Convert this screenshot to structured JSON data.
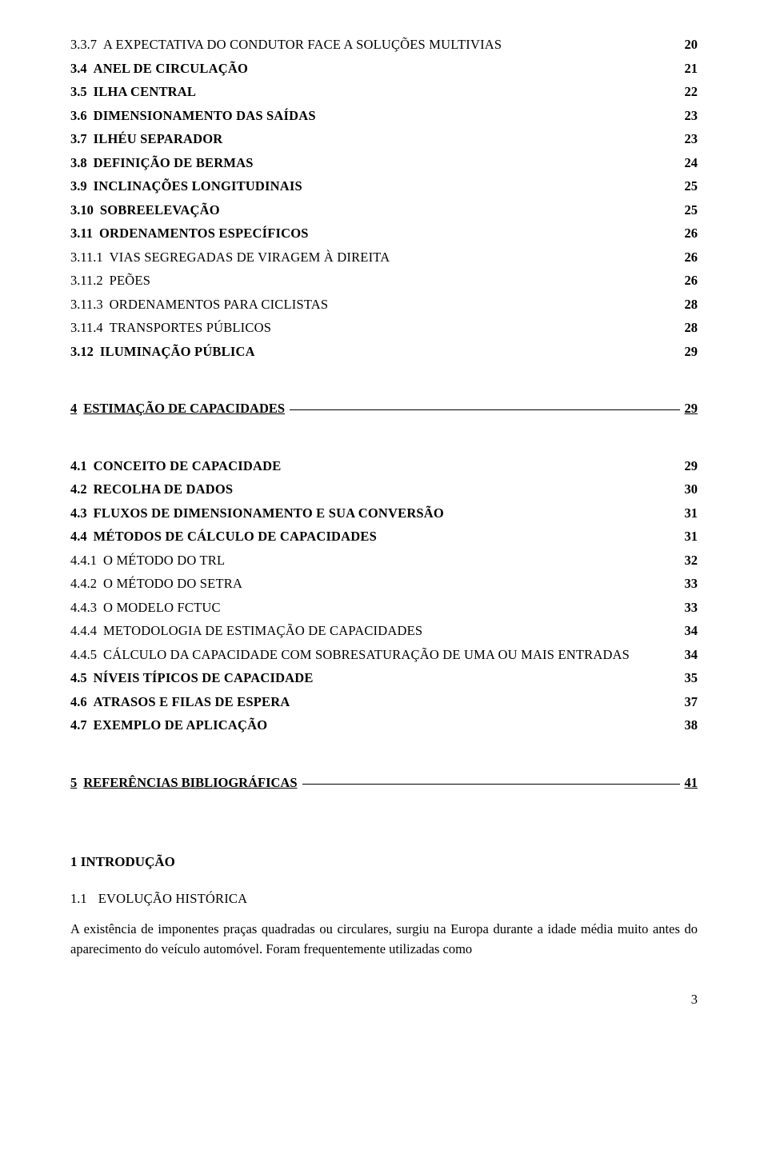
{
  "toc": {
    "block1": [
      {
        "num": "3.3.7",
        "title": "A EXPECTATIVA DO CONDUTOR FACE A SOLUÇÕES MULTIVIAS",
        "page": "20",
        "smallcaps": true
      },
      {
        "num": "3.4",
        "title": "ANEL DE CIRCULAÇÃO",
        "page": "21",
        "smallcaps": true,
        "bold": true
      },
      {
        "num": "3.5",
        "title": "ILHA CENTRAL",
        "page": "22",
        "smallcaps": true,
        "bold": true
      },
      {
        "num": "3.6",
        "title": "DIMENSIONAMENTO DAS SAÍDAS",
        "page": "23",
        "smallcaps": true,
        "bold": true
      },
      {
        "num": "3.7",
        "title": "ILHÉU SEPARADOR",
        "page": "23",
        "smallcaps": true,
        "bold": true
      },
      {
        "num": "3.8",
        "title": "DEFINIÇÃO DE BERMAS",
        "page": "24",
        "smallcaps": true,
        "bold": true
      },
      {
        "num": "3.9",
        "title": "INCLINAÇÕES LONGITUDINAIS",
        "page": "25",
        "smallcaps": true,
        "bold": true
      },
      {
        "num": "3.10",
        "title": "SOBREELEVAÇÃO",
        "page": "25",
        "smallcaps": true,
        "bold": true
      },
      {
        "num": "3.11",
        "title": "ORDENAMENTOS ESPECÍFICOS",
        "page": "26",
        "smallcaps": true,
        "bold": true
      },
      {
        "num": "3.11.1",
        "title": "VIAS SEGREGADAS DE VIRAGEM À DIREITA",
        "page": "26",
        "smallcaps": true
      },
      {
        "num": "3.11.2",
        "title": "PEÕES",
        "page": "26",
        "smallcaps": true
      },
      {
        "num": "3.11.3",
        "title": "ORDENAMENTOS PARA CICLISTAS",
        "page": "28",
        "smallcaps": true
      },
      {
        "num": "3.11.4",
        "title": "TRANSPORTES PÚBLICOS",
        "page": "28",
        "smallcaps": true
      },
      {
        "num": "3.12",
        "title": "ILUMINAÇÃO PÚBLICA",
        "page": "29",
        "smallcaps": true,
        "bold": true
      }
    ],
    "section4": {
      "num": "4",
      "title": "ESTIMAÇÃO DE CAPACIDADES",
      "page": "29"
    },
    "block2": [
      {
        "num": "4.1",
        "title": "CONCEITO DE CAPACIDADE",
        "page": "29",
        "smallcaps": true,
        "bold": true
      },
      {
        "num": "4.2",
        "title": "RECOLHA DE DADOS",
        "page": "30",
        "smallcaps": true,
        "bold": true
      },
      {
        "num": "4.3",
        "title": "FLUXOS DE DIMENSIONAMENTO E SUA CONVERSÃO",
        "page": "31",
        "smallcaps": true,
        "bold": true
      },
      {
        "num": "4.4",
        "title": "MÉTODOS DE CÁLCULO DE CAPACIDADES",
        "page": "31",
        "smallcaps": true,
        "bold": true
      },
      {
        "num": "4.4.1",
        "title": "O MÉTODO DO TRL",
        "page": "32",
        "smallcaps": true
      },
      {
        "num": "4.4.2",
        "title": "O MÉTODO DO SETRA",
        "page": "33",
        "smallcaps": true
      },
      {
        "num": "4.4.3",
        "title": "O MODELO FCTUC",
        "page": "33",
        "smallcaps": true
      },
      {
        "num": "4.4.4",
        "title": "METODOLOGIA DE ESTIMAÇÃO DE CAPACIDADES",
        "page": "34",
        "smallcaps": true
      },
      {
        "num": "4.4.5",
        "title": "CÁLCULO DA CAPACIDADE COM SOBRESATURAÇÃO DE UMA OU MAIS ENTRADAS",
        "page": "34",
        "smallcaps": true
      },
      {
        "num": "4.5",
        "title": "NÍVEIS TÍPICOS DE CAPACIDADE",
        "page": "35",
        "smallcaps": true,
        "bold": true
      },
      {
        "num": "4.6",
        "title": "ATRASOS E FILAS DE ESPERA",
        "page": "37",
        "smallcaps": true,
        "bold": true
      },
      {
        "num": "4.7",
        "title": "EXEMPLO DE APLICAÇÃO",
        "page": "38",
        "smallcaps": true,
        "bold": true
      }
    ],
    "section5": {
      "num": "5",
      "title": "REFERÊNCIAS BIBLIOGRÁFICAS",
      "page": "41"
    }
  },
  "intro": {
    "heading": "1  INTRODUÇÃO",
    "sub_num": "1.1",
    "sub_title": "EVOLUÇÃO HISTÓRICA",
    "paragraph": "A existência de imponentes praças quadradas ou circulares, surgiu na Europa durante a idade média muito antes do aparecimento do veículo automóvel. Foram frequentemente utilizadas como"
  },
  "page_number": "3"
}
